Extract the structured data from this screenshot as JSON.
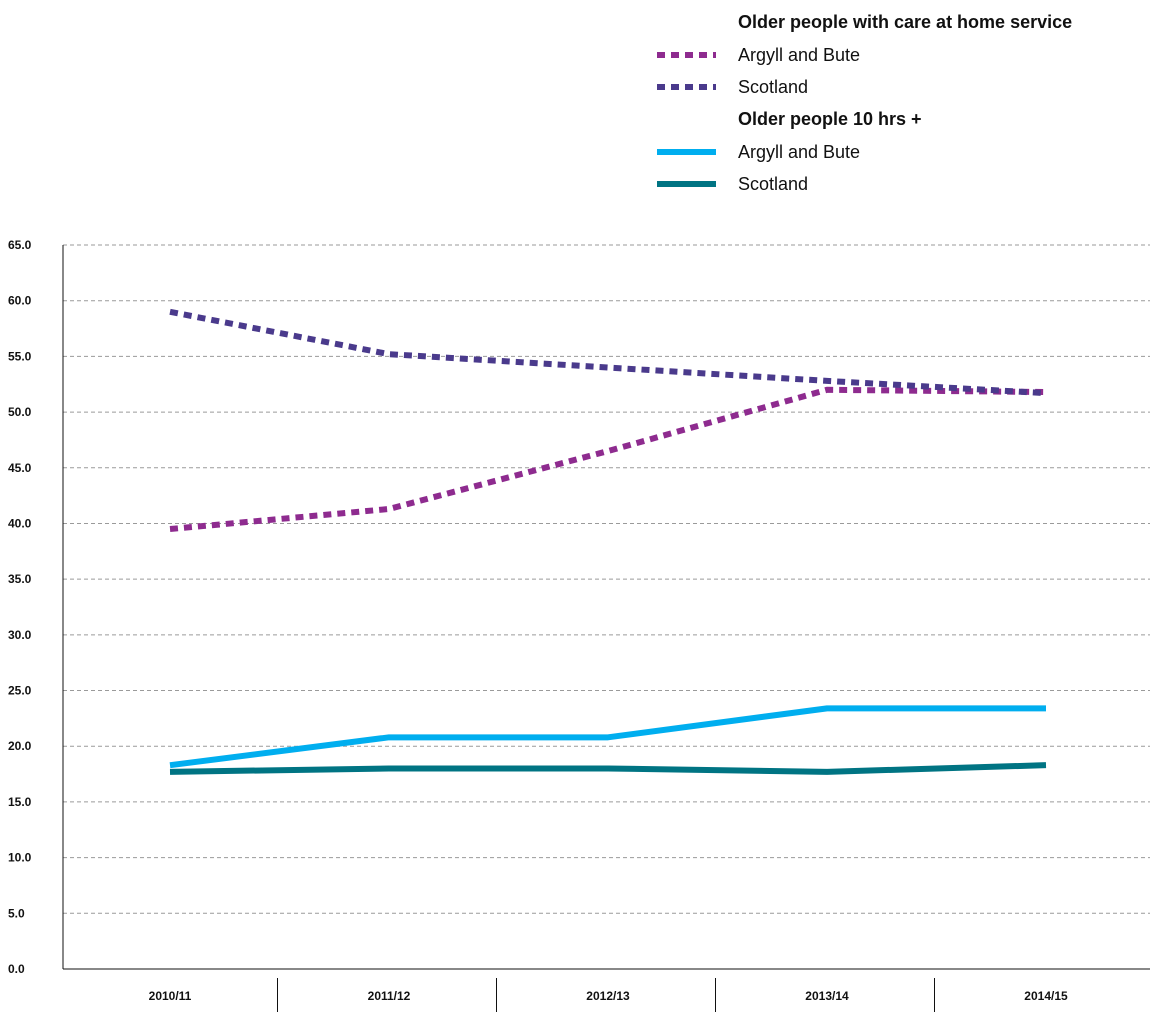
{
  "chart_data": {
    "type": "line",
    "title": "",
    "xlabel": "",
    "ylabel": "",
    "categories": [
      "2010/11",
      "2011/12",
      "2012/13",
      "2013/14",
      "2014/15"
    ],
    "ylim": [
      0,
      65
    ],
    "yticks": [
      "0.0",
      "5.0",
      "10.0",
      "15.0",
      "20.0",
      "25.0",
      "30.0",
      "35.0",
      "40.0",
      "45.0",
      "50.0",
      "55.0",
      "60.0",
      "65.0"
    ],
    "grid": true,
    "legend_placement": "top-right",
    "legend_groups": [
      {
        "title": "Older people with care at home service",
        "entries": [
          {
            "series_index": 0,
            "label": "Argyll and Bute"
          },
          {
            "series_index": 1,
            "label": "Scotland"
          }
        ]
      },
      {
        "title": "Older people 10 hrs +",
        "entries": [
          {
            "series_index": 2,
            "label": "Argyll and Bute"
          },
          {
            "series_index": 3,
            "label": "Scotland"
          }
        ]
      }
    ],
    "series": [
      {
        "name": "Argyll and Bute",
        "group": "Older people with care at home service",
        "style": "dotted",
        "color": "#8e2b8f",
        "values": [
          39.5,
          41.3,
          46.5,
          52.0,
          51.8
        ]
      },
      {
        "name": "Scotland",
        "group": "Older people with care at home service",
        "style": "dotted",
        "color": "#4a3a8c",
        "values": [
          59.0,
          55.2,
          54.0,
          52.8,
          51.7
        ]
      },
      {
        "name": "Argyll and Bute",
        "group": "Older people 10 hrs +",
        "style": "solid",
        "color": "#00aeef",
        "values": [
          18.3,
          20.8,
          20.8,
          23.4,
          23.4
        ]
      },
      {
        "name": "Scotland",
        "group": "Older people 10 hrs +",
        "style": "solid",
        "color": "#007483",
        "values": [
          17.7,
          18.0,
          18.0,
          17.7,
          18.3
        ]
      }
    ]
  }
}
